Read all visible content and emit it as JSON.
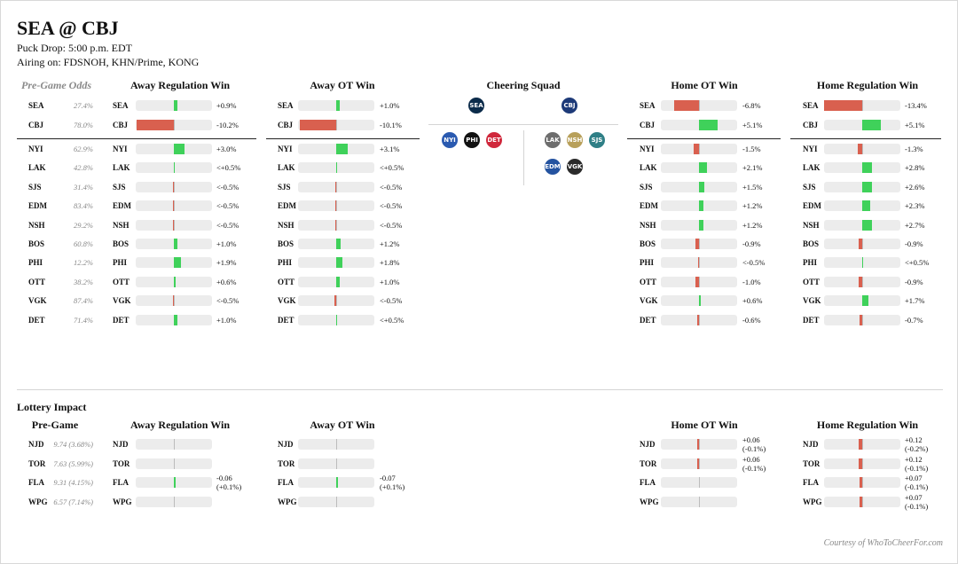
{
  "title": "SEA @ CBJ",
  "puck_drop": "Puck Drop: 5:00 p.m. EDT",
  "airing": "Airing on: FDSNOH, KHN/Prime, KONG",
  "colors": {
    "positive": "#3fd15a",
    "negative": "#d9604f",
    "track": "#ececec"
  },
  "headers": {
    "pregame_odds": "Pre-Game Odds",
    "away_reg": "Away Regulation Win",
    "away_ot": "Away OT Win",
    "cheering": "Cheering Squad",
    "home_ot": "Home OT Win",
    "home_reg": "Home Regulation Win"
  },
  "teams": [
    "SEA",
    "CBJ",
    "NYI",
    "LAK",
    "SJS",
    "EDM",
    "NSH",
    "BOS",
    "PHI",
    "OTT",
    "VGK",
    "DET"
  ],
  "odds": [
    "27.4%",
    "78.0%",
    "62.9%",
    "42.8%",
    "31.4%",
    "83.4%",
    "29.2%",
    "60.8%",
    "12.2%",
    "38.2%",
    "87.4%",
    "71.4%"
  ],
  "away_reg": {
    "values": [
      0.9,
      -10.2,
      3.0,
      0.3,
      -0.3,
      -0.3,
      -0.1,
      1.0,
      1.9,
      0.6,
      -0.2,
      1.0
    ],
    "labels": [
      "+0.9%",
      "-10.2%",
      "+3.0%",
      "<+0.5%",
      "<-0.5%",
      "<-0.5%",
      "<-0.5%",
      "+1.0%",
      "+1.9%",
      "+0.6%",
      "<-0.5%",
      "+1.0%"
    ]
  },
  "away_ot": {
    "values": [
      1.0,
      -10.1,
      3.1,
      0.3,
      -0.3,
      -0.3,
      -0.2,
      1.2,
      1.8,
      1.0,
      -0.4,
      0.2
    ],
    "labels": [
      "+1.0%",
      "-10.1%",
      "+3.1%",
      "<+0.5%",
      "<-0.5%",
      "<-0.5%",
      "<-0.5%",
      "+1.2%",
      "+1.8%",
      "+1.0%",
      "<-0.5%",
      "<+0.5%"
    ]
  },
  "home_ot": {
    "values": [
      -6.8,
      5.1,
      -1.5,
      2.1,
      1.5,
      1.2,
      1.2,
      -0.9,
      -0.1,
      -1.0,
      0.6,
      -0.6
    ],
    "labels": [
      "-6.8%",
      "+5.1%",
      "-1.5%",
      "+2.1%",
      "+1.5%",
      "+1.2%",
      "+1.2%",
      "-0.9%",
      "<-0.5%",
      "-1.0%",
      "+0.6%",
      "-0.6%"
    ]
  },
  "home_reg": {
    "values": [
      -13.4,
      5.1,
      -1.3,
      2.8,
      2.6,
      2.3,
      2.7,
      -0.9,
      0.2,
      -0.9,
      1.7,
      -0.7
    ],
    "labels": [
      "-13.4%",
      "+5.1%",
      "-1.3%",
      "+2.8%",
      "+2.6%",
      "+2.3%",
      "+2.7%",
      "-0.9%",
      "<+0.5%",
      "-0.9%",
      "+1.7%",
      "-0.7%"
    ]
  },
  "cheering": {
    "away_primary": {
      "name": "kraken-logo",
      "abbr": "SEA",
      "color": "#0b2b4a"
    },
    "home_primary": {
      "name": "blue-jackets-logo",
      "abbr": "CBJ",
      "color": "#1d3a78"
    },
    "away_squad": [
      {
        "name": "islanders-logo",
        "abbr": "NYI",
        "color": "#2a5ab0"
      },
      {
        "name": "flyers-logo",
        "abbr": "PHI",
        "color": "#111111"
      },
      {
        "name": "red-wings-logo",
        "abbr": "DET",
        "color": "#d0283c"
      }
    ],
    "home_squad": [
      {
        "name": "kings-logo",
        "abbr": "LAK",
        "color": "#6d6d6d"
      },
      {
        "name": "predators-logo",
        "abbr": "NSH",
        "color": "#b8a05a"
      },
      {
        "name": "sharks-logo",
        "abbr": "SJS",
        "color": "#2f7f86"
      },
      {
        "name": "oilers-logo",
        "abbr": "EDM",
        "color": "#2453a0"
      },
      {
        "name": "golden-knights-logo",
        "abbr": "VGK",
        "color": "#2b2b2b"
      }
    ]
  },
  "lottery": {
    "title": "Lottery Impact",
    "pregame_header": "Pre-Game",
    "teams": [
      "NJD",
      "TOR",
      "FLA",
      "WPG"
    ],
    "pregame": [
      "9.74 (3.68%)",
      "7.63 (5.99%)",
      "9.31 (4.15%)",
      "6.57 (7.14%)"
    ],
    "away_reg": {
      "values": [
        0,
        0,
        0.05,
        0
      ],
      "labels": [
        "",
        "",
        "-0.06 (+0.1%)",
        ""
      ]
    },
    "away_ot": {
      "values": [
        0,
        0,
        0.06,
        0
      ],
      "labels": [
        "",
        "",
        "-0.07 (+0.1%)",
        ""
      ]
    },
    "home_ot": {
      "values": [
        -0.06,
        -0.06,
        0,
        0
      ],
      "labels": [
        "+0.06 (-0.1%)",
        "+0.06 (-0.1%)",
        "",
        ""
      ]
    },
    "home_reg": {
      "values": [
        -0.12,
        -0.12,
        -0.07,
        -0.07
      ],
      "labels": [
        "+0.12 (-0.2%)",
        "+0.12 (-0.1%)",
        "+0.07 (-0.1%)",
        "+0.07 (-0.1%)"
      ]
    }
  },
  "credit": "Courtesy of WhoToCheerFor.com"
}
